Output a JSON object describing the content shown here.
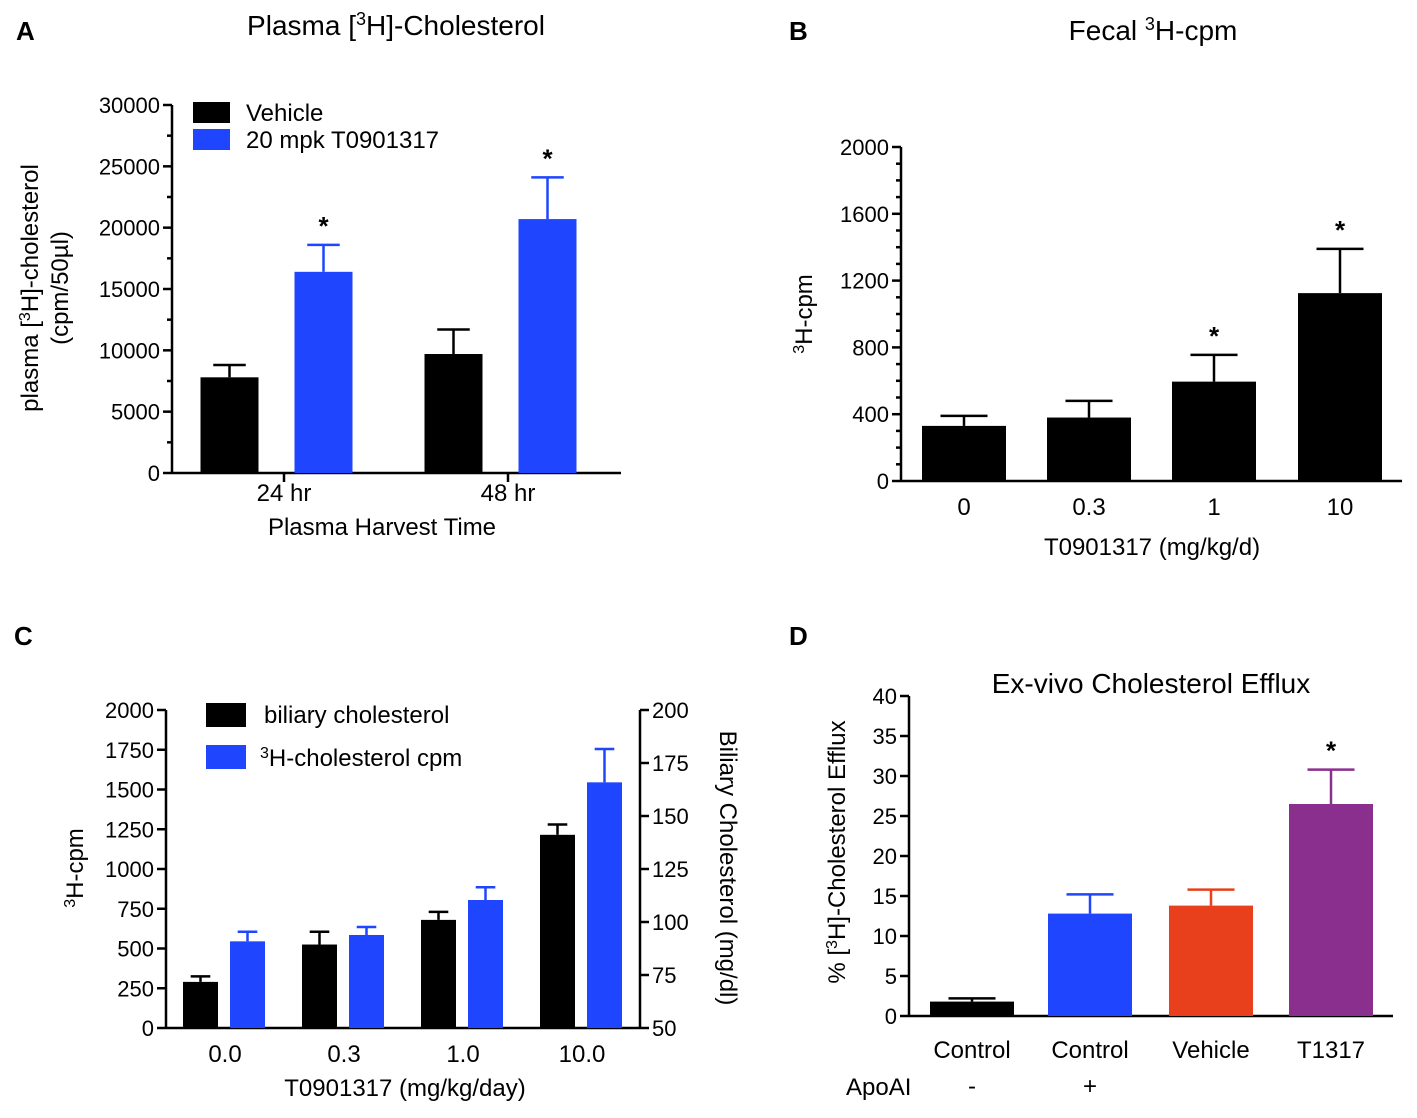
{
  "chart_data": [
    {
      "panel": "A",
      "type": "bar",
      "title": "Plasma [3H]-Cholesterol",
      "xlabel": "Plasma Harvest Time",
      "ylabel_line1": "plasma [3H]-cholesterol",
      "ylabel_line2": "(cpm/50µl)",
      "ylim": [
        0,
        30000
      ],
      "yticks": [
        0,
        5000,
        10000,
        15000,
        20000,
        25000,
        30000
      ],
      "categories": [
        "24 hr",
        "48 hr"
      ],
      "legend_position": "top-left",
      "series": [
        {
          "name": "Vehicle",
          "color": "#000000",
          "values": [
            7800,
            9700
          ],
          "errors": [
            1000,
            2000
          ],
          "sig": [
            "",
            ""
          ]
        },
        {
          "name": "20 mpk T0901317",
          "color": "#1f45ff",
          "values": [
            16400,
            20700
          ],
          "errors": [
            2200,
            3400
          ],
          "sig": [
            "*",
            "*"
          ]
        }
      ]
    },
    {
      "panel": "B",
      "type": "bar",
      "title": "Fecal 3H-cpm",
      "xlabel": "T0901317 (mg/kg/d)",
      "ylabel": "3H-cpm",
      "ylim": [
        0,
        2000
      ],
      "yticks": [
        0,
        400,
        800,
        1200,
        1600,
        2000
      ],
      "categories": [
        "0",
        "0.3",
        "1",
        "10"
      ],
      "series": [
        {
          "name": "Fecal 3H-cpm",
          "color": "#000000",
          "values": [
            330,
            380,
            595,
            1125
          ],
          "errors": [
            60,
            100,
            160,
            265
          ],
          "sig": [
            "",
            "",
            "*",
            "*"
          ]
        }
      ]
    },
    {
      "panel": "C",
      "type": "bar",
      "xlabel": "T0901317 (mg/kg/day)",
      "ylabel_left": "3H-cpm",
      "ylabel_right": "Biliary Cholesterol (mg/dl)",
      "ylim_left": [
        0,
        2000
      ],
      "yticks_left": [
        0,
        250,
        500,
        750,
        1000,
        1250,
        1500,
        1750,
        2000
      ],
      "ylim_right": [
        50,
        200
      ],
      "yticks_right": [
        50,
        75,
        100,
        125,
        150,
        175,
        200
      ],
      "categories": [
        "0.0",
        "0.3",
        "1.0",
        "10.0"
      ],
      "legend_position": "top-left",
      "series": [
        {
          "name": "biliary cholesterol",
          "axis": "left",
          "color": "#000000",
          "values": [
            290,
            525,
            680,
            1215
          ],
          "errors": [
            35,
            80,
            50,
            65
          ]
        },
        {
          "name": "3H-cholesterol cpm",
          "axis": "left",
          "color": "#1f45ff",
          "values": [
            545,
            585,
            805,
            1545
          ],
          "errors": [
            60,
            50,
            80,
            210
          ]
        }
      ]
    },
    {
      "panel": "D",
      "type": "bar",
      "title": "Ex-vivo Cholesterol Efflux",
      "ylabel": "% [3H]-Cholesterol Efflux",
      "ylim": [
        0,
        40
      ],
      "yticks": [
        0,
        5,
        10,
        15,
        20,
        25,
        30,
        35,
        40
      ],
      "categories": [
        "Control",
        "Control",
        "Vehicle",
        "T1317"
      ],
      "row_label": "ApoAI",
      "apoai": [
        "-",
        "+",
        "",
        ""
      ],
      "series": [
        {
          "name": "% Efflux",
          "colors": [
            "#000000",
            "#1f45ff",
            "#e8401c",
            "#8b2f8e"
          ],
          "values": [
            1.8,
            12.8,
            13.8,
            26.5
          ],
          "errors": [
            0.4,
            2.4,
            2.0,
            4.3
          ],
          "sig": [
            "",
            "",
            "",
            "*"
          ]
        }
      ]
    }
  ]
}
